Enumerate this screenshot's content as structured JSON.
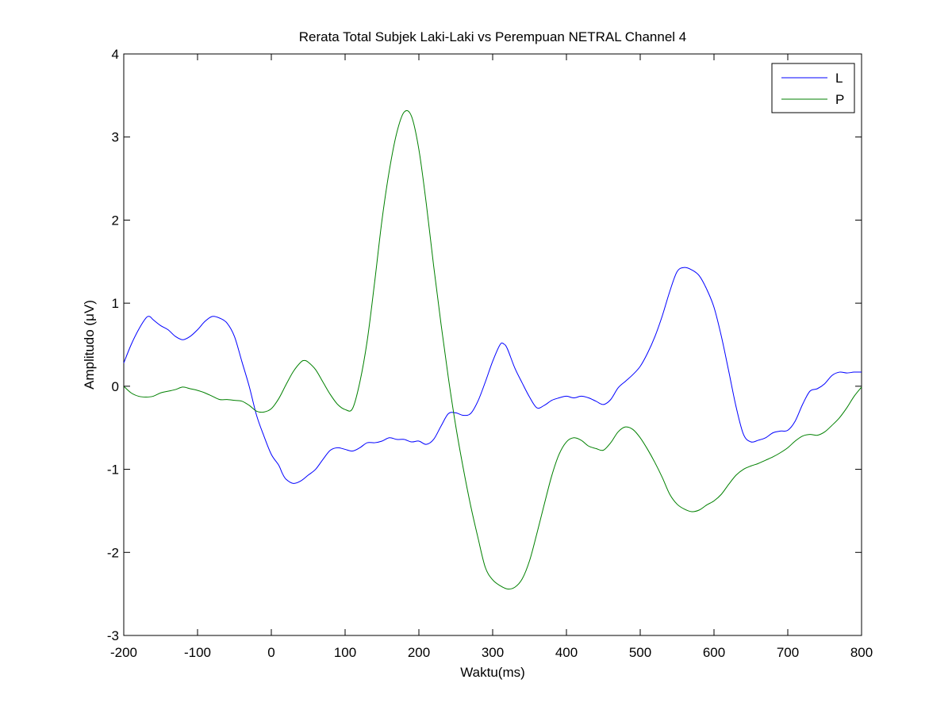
{
  "chart_data": {
    "type": "line",
    "title": "Rerata Total Subjek Laki-Laki vs Perempuan NETRAL Channel 4",
    "xlabel": "Waktu(ms)",
    "ylabel": "Amplitudo (μV)",
    "xlim": [
      -200,
      800
    ],
    "ylim": [
      -3,
      4
    ],
    "xticks": [
      "-200",
      "-100",
      "0",
      "100",
      "200",
      "300",
      "400",
      "500",
      "600",
      "700",
      "800"
    ],
    "yticks": [
      "-3",
      "-2",
      "-1",
      "0",
      "1",
      "2",
      "3",
      "4"
    ],
    "grid": false,
    "legend_position": "top-right",
    "series": [
      {
        "name": "L",
        "color": "#0000ff",
        "points": [
          [
            -200,
            0.28
          ],
          [
            -190,
            0.5
          ],
          [
            -180,
            0.68
          ],
          [
            -170,
            0.82
          ],
          [
            -165,
            0.84
          ],
          [
            -160,
            0.8
          ],
          [
            -150,
            0.73
          ],
          [
            -140,
            0.68
          ],
          [
            -130,
            0.6
          ],
          [
            -120,
            0.56
          ],
          [
            -110,
            0.6
          ],
          [
            -100,
            0.68
          ],
          [
            -90,
            0.78
          ],
          [
            -80,
            0.84
          ],
          [
            -70,
            0.82
          ],
          [
            -60,
            0.76
          ],
          [
            -50,
            0.6
          ],
          [
            -40,
            0.3
          ],
          [
            -30,
            0.0
          ],
          [
            -20,
            -0.35
          ],
          [
            -10,
            -0.6
          ],
          [
            0,
            -0.82
          ],
          [
            10,
            -0.95
          ],
          [
            15,
            -1.05
          ],
          [
            20,
            -1.12
          ],
          [
            30,
            -1.17
          ],
          [
            40,
            -1.14
          ],
          [
            50,
            -1.07
          ],
          [
            60,
            -1.0
          ],
          [
            70,
            -0.88
          ],
          [
            80,
            -0.77
          ],
          [
            90,
            -0.74
          ],
          [
            100,
            -0.76
          ],
          [
            110,
            -0.78
          ],
          [
            120,
            -0.74
          ],
          [
            130,
            -0.68
          ],
          [
            140,
            -0.68
          ],
          [
            150,
            -0.66
          ],
          [
            160,
            -0.62
          ],
          [
            170,
            -0.64
          ],
          [
            180,
            -0.64
          ],
          [
            190,
            -0.67
          ],
          [
            200,
            -0.66
          ],
          [
            210,
            -0.7
          ],
          [
            220,
            -0.64
          ],
          [
            230,
            -0.48
          ],
          [
            240,
            -0.33
          ],
          [
            250,
            -0.32
          ],
          [
            260,
            -0.35
          ],
          [
            270,
            -0.33
          ],
          [
            280,
            -0.18
          ],
          [
            290,
            0.05
          ],
          [
            300,
            0.3
          ],
          [
            310,
            0.5
          ],
          [
            315,
            0.51
          ],
          [
            320,
            0.45
          ],
          [
            330,
            0.22
          ],
          [
            340,
            0.04
          ],
          [
            350,
            -0.13
          ],
          [
            360,
            -0.26
          ],
          [
            370,
            -0.23
          ],
          [
            380,
            -0.17
          ],
          [
            390,
            -0.14
          ],
          [
            400,
            -0.12
          ],
          [
            410,
            -0.14
          ],
          [
            420,
            -0.12
          ],
          [
            430,
            -0.14
          ],
          [
            440,
            -0.18
          ],
          [
            450,
            -0.22
          ],
          [
            460,
            -0.16
          ],
          [
            470,
            -0.02
          ],
          [
            480,
            0.06
          ],
          [
            490,
            0.14
          ],
          [
            500,
            0.24
          ],
          [
            510,
            0.4
          ],
          [
            520,
            0.6
          ],
          [
            530,
            0.85
          ],
          [
            540,
            1.14
          ],
          [
            550,
            1.38
          ],
          [
            560,
            1.43
          ],
          [
            570,
            1.4
          ],
          [
            580,
            1.33
          ],
          [
            590,
            1.17
          ],
          [
            600,
            0.95
          ],
          [
            610,
            0.6
          ],
          [
            620,
            0.18
          ],
          [
            630,
            -0.25
          ],
          [
            640,
            -0.58
          ],
          [
            650,
            -0.67
          ],
          [
            660,
            -0.65
          ],
          [
            670,
            -0.62
          ],
          [
            680,
            -0.56
          ],
          [
            690,
            -0.54
          ],
          [
            700,
            -0.53
          ],
          [
            710,
            -0.42
          ],
          [
            720,
            -0.22
          ],
          [
            730,
            -0.06
          ],
          [
            740,
            -0.03
          ],
          [
            750,
            0.03
          ],
          [
            760,
            0.13
          ],
          [
            770,
            0.17
          ],
          [
            780,
            0.16
          ],
          [
            790,
            0.17
          ],
          [
            800,
            0.17
          ]
        ]
      },
      {
        "name": "P",
        "color": "#008000",
        "points": [
          [
            -200,
            0.0
          ],
          [
            -190,
            -0.08
          ],
          [
            -180,
            -0.12
          ],
          [
            -170,
            -0.13
          ],
          [
            -160,
            -0.12
          ],
          [
            -150,
            -0.08
          ],
          [
            -140,
            -0.06
          ],
          [
            -130,
            -0.04
          ],
          [
            -120,
            -0.01
          ],
          [
            -110,
            -0.03
          ],
          [
            -100,
            -0.05
          ],
          [
            -90,
            -0.08
          ],
          [
            -80,
            -0.12
          ],
          [
            -70,
            -0.16
          ],
          [
            -60,
            -0.16
          ],
          [
            -50,
            -0.17
          ],
          [
            -40,
            -0.18
          ],
          [
            -30,
            -0.23
          ],
          [
            -20,
            -0.3
          ],
          [
            -10,
            -0.31
          ],
          [
            0,
            -0.27
          ],
          [
            10,
            -0.15
          ],
          [
            20,
            0.02
          ],
          [
            30,
            0.18
          ],
          [
            40,
            0.29
          ],
          [
            45,
            0.31
          ],
          [
            50,
            0.29
          ],
          [
            60,
            0.2
          ],
          [
            70,
            0.05
          ],
          [
            80,
            -0.1
          ],
          [
            90,
            -0.22
          ],
          [
            100,
            -0.28
          ],
          [
            110,
            -0.27
          ],
          [
            120,
            0.05
          ],
          [
            130,
            0.55
          ],
          [
            140,
            1.25
          ],
          [
            150,
            2.0
          ],
          [
            160,
            2.6
          ],
          [
            170,
            3.05
          ],
          [
            180,
            3.3
          ],
          [
            190,
            3.25
          ],
          [
            200,
            2.85
          ],
          [
            210,
            2.2
          ],
          [
            220,
            1.45
          ],
          [
            230,
            0.75
          ],
          [
            240,
            0.1
          ],
          [
            250,
            -0.48
          ],
          [
            260,
            -0.98
          ],
          [
            270,
            -1.43
          ],
          [
            280,
            -1.82
          ],
          [
            290,
            -2.18
          ],
          [
            300,
            -2.33
          ],
          [
            310,
            -2.4
          ],
          [
            320,
            -2.44
          ],
          [
            330,
            -2.42
          ],
          [
            340,
            -2.32
          ],
          [
            350,
            -2.1
          ],
          [
            360,
            -1.77
          ],
          [
            370,
            -1.42
          ],
          [
            380,
            -1.08
          ],
          [
            390,
            -0.82
          ],
          [
            400,
            -0.67
          ],
          [
            410,
            -0.62
          ],
          [
            420,
            -0.65
          ],
          [
            430,
            -0.72
          ],
          [
            440,
            -0.75
          ],
          [
            450,
            -0.77
          ],
          [
            460,
            -0.68
          ],
          [
            470,
            -0.55
          ],
          [
            480,
            -0.49
          ],
          [
            490,
            -0.52
          ],
          [
            500,
            -0.62
          ],
          [
            510,
            -0.76
          ],
          [
            520,
            -0.92
          ],
          [
            530,
            -1.1
          ],
          [
            540,
            -1.3
          ],
          [
            550,
            -1.42
          ],
          [
            560,
            -1.48
          ],
          [
            570,
            -1.51
          ],
          [
            580,
            -1.49
          ],
          [
            590,
            -1.43
          ],
          [
            600,
            -1.38
          ],
          [
            610,
            -1.3
          ],
          [
            620,
            -1.18
          ],
          [
            630,
            -1.07
          ],
          [
            640,
            -1.0
          ],
          [
            650,
            -0.96
          ],
          [
            660,
            -0.93
          ],
          [
            670,
            -0.89
          ],
          [
            680,
            -0.85
          ],
          [
            690,
            -0.8
          ],
          [
            700,
            -0.74
          ],
          [
            710,
            -0.66
          ],
          [
            720,
            -0.6
          ],
          [
            730,
            -0.58
          ],
          [
            740,
            -0.59
          ],
          [
            750,
            -0.55
          ],
          [
            760,
            -0.47
          ],
          [
            770,
            -0.38
          ],
          [
            780,
            -0.26
          ],
          [
            790,
            -0.12
          ],
          [
            800,
            -0.01
          ]
        ]
      }
    ]
  }
}
